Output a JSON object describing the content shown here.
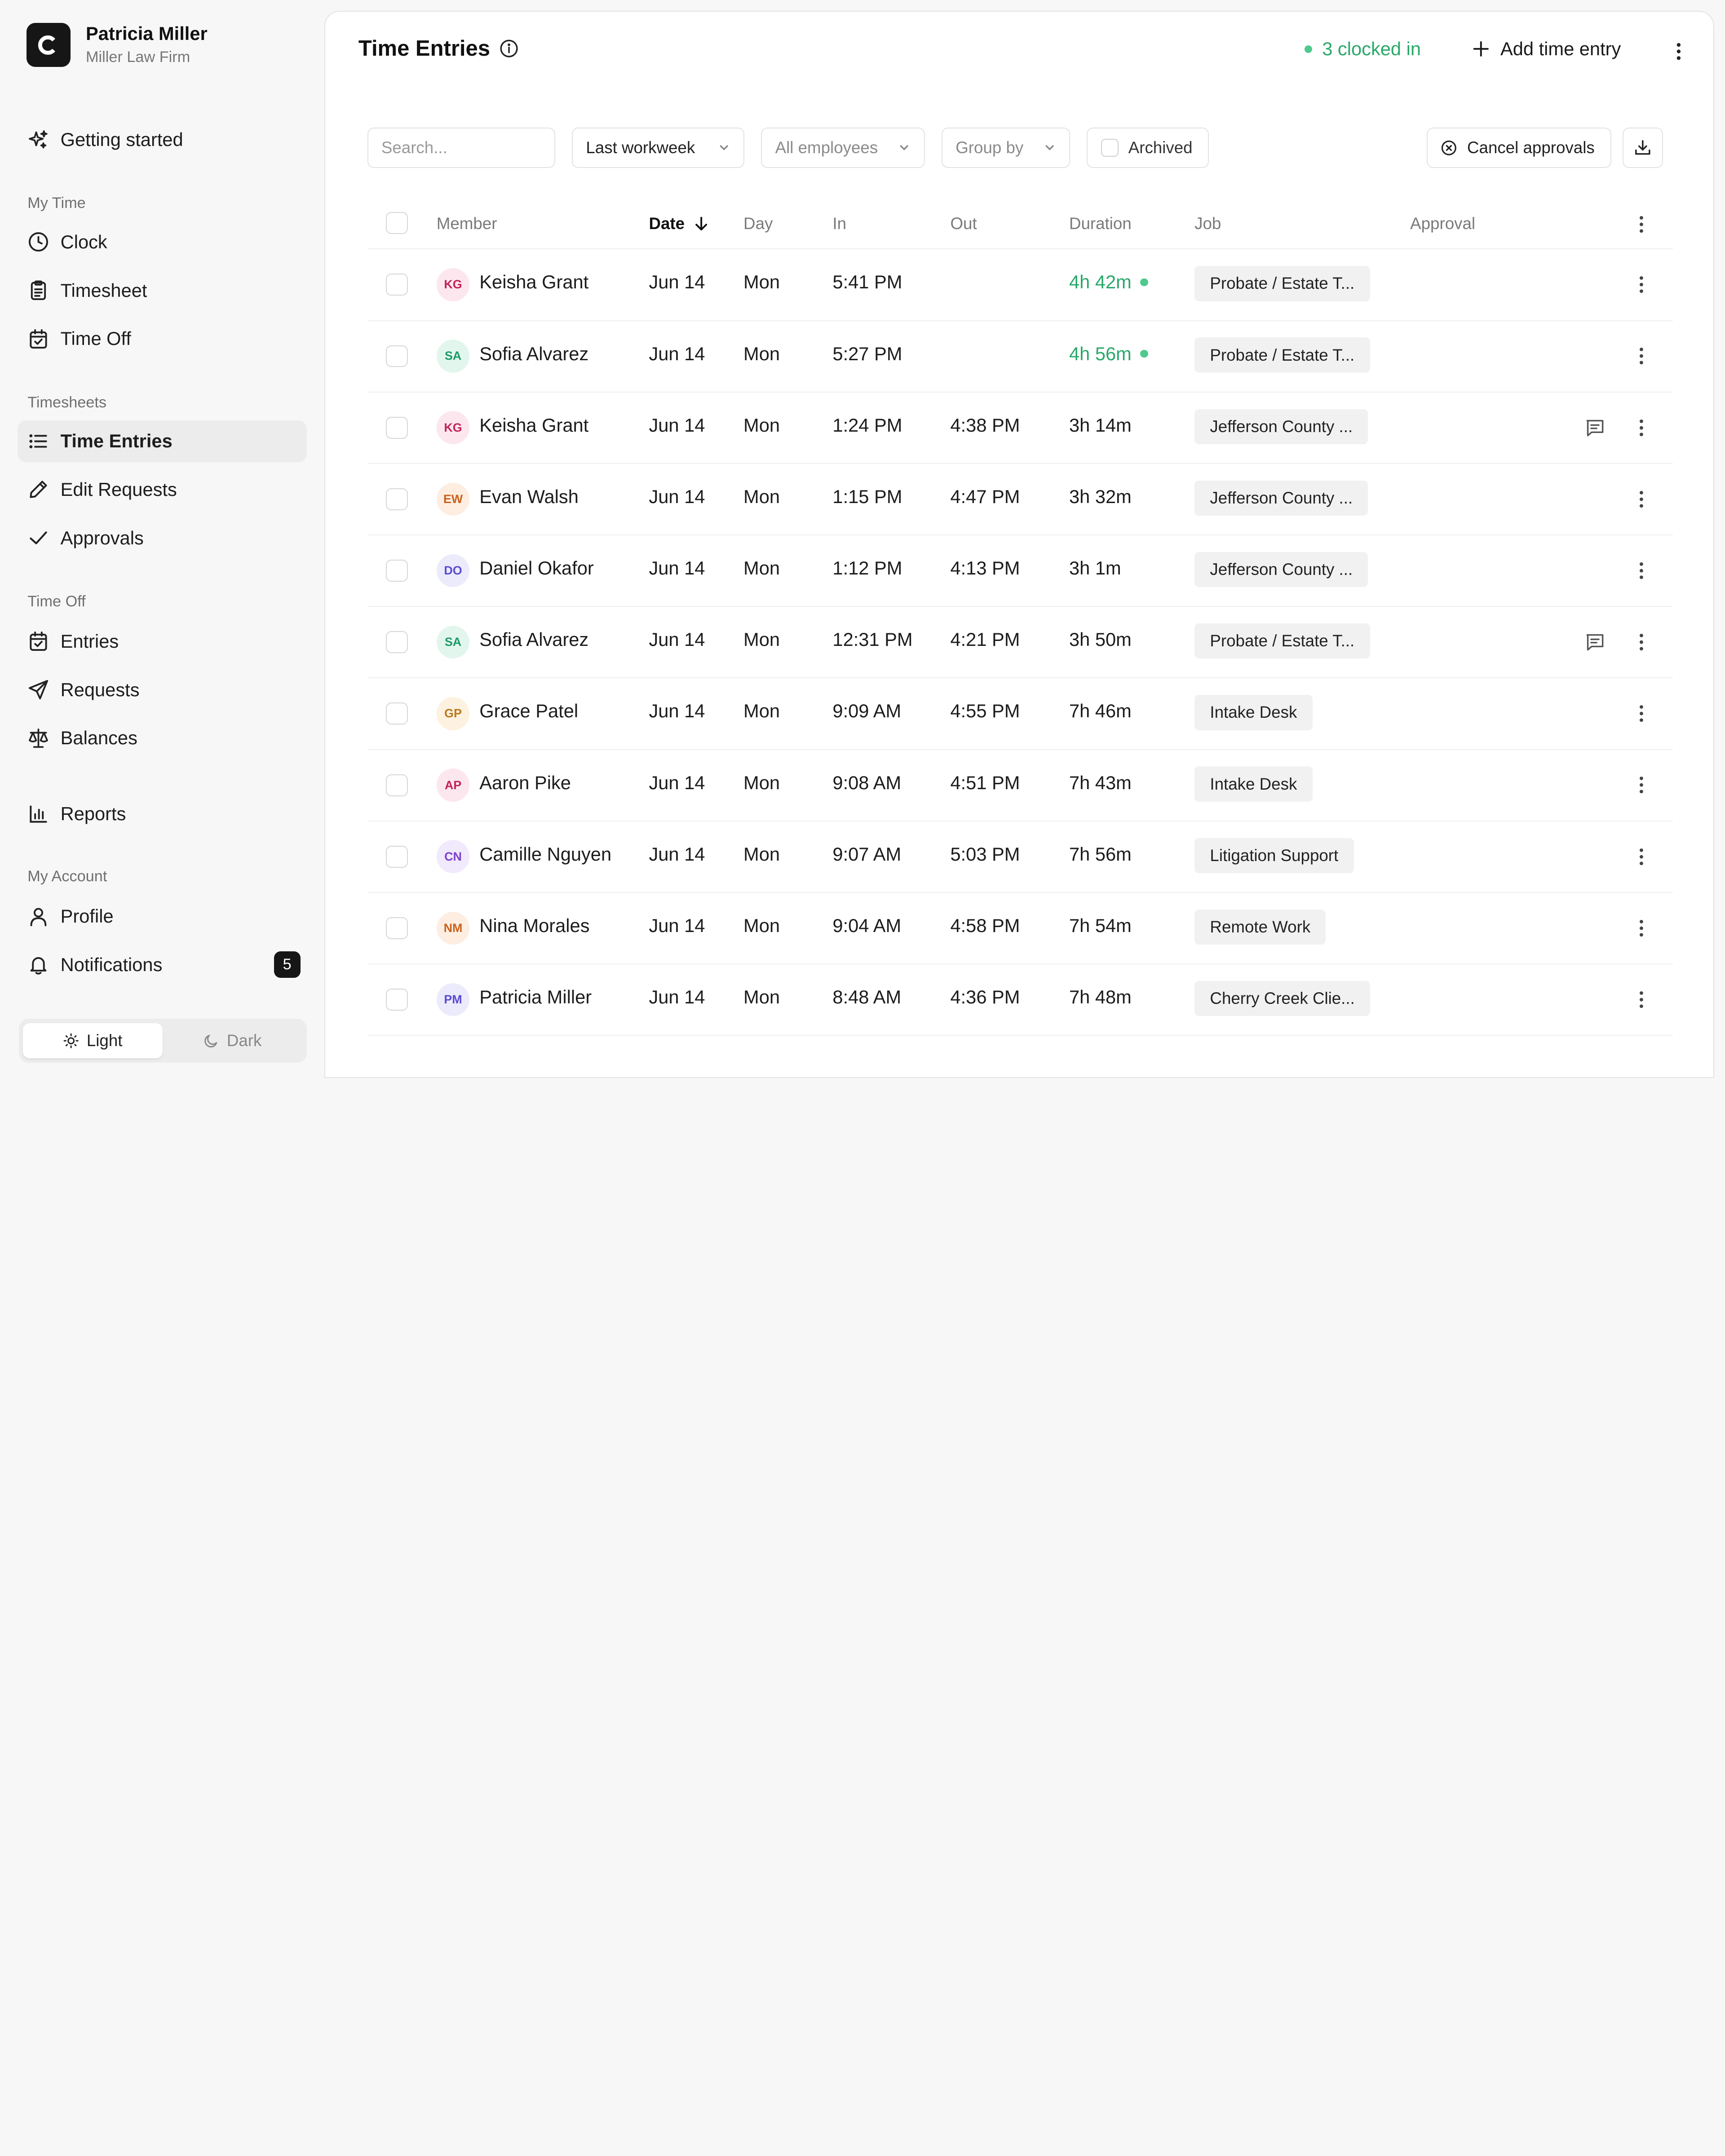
{
  "user": {
    "name": "Patricia Miller",
    "company": "Miller Law Firm",
    "logo_letter": "C"
  },
  "nav": {
    "getting_started": "Getting started",
    "my_time_section": "My Time",
    "clock": "Clock",
    "timesheet": "Timesheet",
    "time_off": "Time Off",
    "timesheets_section": "Timesheets",
    "time_entries": "Time Entries",
    "edit_requests": "Edit Requests",
    "approvals": "Approvals",
    "time_off_section": "Time Off",
    "entries": "Entries",
    "requests": "Requests",
    "balances": "Balances",
    "reports": "Reports",
    "my_account_section": "My Account",
    "profile": "Profile",
    "notifications": "Notifications",
    "notifications_count": "5",
    "active": "time_entries"
  },
  "theme": {
    "light": "Light",
    "dark": "Dark",
    "selected": "light"
  },
  "header": {
    "title": "Time Entries",
    "clocked_in": "3 clocked in",
    "add_entry": "Add time entry"
  },
  "toolbar": {
    "search_placeholder": "Search...",
    "period": "Last workweek",
    "employees": "All employees",
    "group_by": "Group by",
    "archived": "Archived",
    "cancel_approvals": "Cancel approvals"
  },
  "table": {
    "columns": [
      "Member",
      "Date",
      "Day",
      "In",
      "Out",
      "Duration",
      "Job",
      "Approval"
    ],
    "sorted_column": "Date",
    "sort_direction": "descending",
    "rows": [
      {
        "initials": "KG",
        "name": "Keisha Grant",
        "date": "Jun 14",
        "day": "Mon",
        "in": "5:41 PM",
        "out": "",
        "duration": "4h 42m",
        "running": true,
        "job": "Probate / Estate T...",
        "comment": false,
        "avatar_color": "#c0245a",
        "avatar_bg": "#fde7ee"
      },
      {
        "initials": "SA",
        "name": "Sofia Alvarez",
        "date": "Jun 14",
        "day": "Mon",
        "in": "5:27 PM",
        "out": "",
        "duration": "4h 56m",
        "running": true,
        "job": "Probate / Estate T...",
        "comment": false,
        "avatar_color": "#1c9a6a",
        "avatar_bg": "#e3f6ee"
      },
      {
        "initials": "KG",
        "name": "Keisha Grant",
        "date": "Jun 14",
        "day": "Mon",
        "in": "1:24 PM",
        "out": "4:38 PM",
        "duration": "3h 14m",
        "running": false,
        "job": "Jefferson County ...",
        "comment": true,
        "avatar_color": "#c0245a",
        "avatar_bg": "#fde7ee"
      },
      {
        "initials": "EW",
        "name": "Evan Walsh",
        "date": "Jun 14",
        "day": "Mon",
        "in": "1:15 PM",
        "out": "4:47 PM",
        "duration": "3h 32m",
        "running": false,
        "job": "Jefferson County ...",
        "comment": false,
        "avatar_color": "#c8621e",
        "avatar_bg": "#fdeee1"
      },
      {
        "initials": "DO",
        "name": "Daniel Okafor",
        "date": "Jun 14",
        "day": "Mon",
        "in": "1:12 PM",
        "out": "4:13 PM",
        "duration": "3h 1m",
        "running": false,
        "job": "Jefferson County ...",
        "comment": false,
        "avatar_color": "#5b4bd0",
        "avatar_bg": "#ecebfb"
      },
      {
        "initials": "SA",
        "name": "Sofia Alvarez",
        "date": "Jun 14",
        "day": "Mon",
        "in": "12:31 PM",
        "out": "4:21 PM",
        "duration": "3h 50m",
        "running": false,
        "job": "Probate / Estate T...",
        "comment": true,
        "avatar_color": "#1c9a6a",
        "avatar_bg": "#e3f6ee"
      },
      {
        "initials": "GP",
        "name": "Grace Patel",
        "date": "Jun 14",
        "day": "Mon",
        "in": "9:09 AM",
        "out": "4:55 PM",
        "duration": "7h 46m",
        "running": false,
        "job": "Intake Desk",
        "comment": false,
        "avatar_color": "#b7791f",
        "avatar_bg": "#fdf1df"
      },
      {
        "initials": "AP",
        "name": "Aaron Pike",
        "date": "Jun 14",
        "day": "Mon",
        "in": "9:08 AM",
        "out": "4:51 PM",
        "duration": "7h 43m",
        "running": false,
        "job": "Intake Desk",
        "comment": false,
        "avatar_color": "#c0245a",
        "avatar_bg": "#fde7ee"
      },
      {
        "initials": "CN",
        "name": "Camille Nguyen",
        "date": "Jun 14",
        "day": "Mon",
        "in": "9:07 AM",
        "out": "5:03 PM",
        "duration": "7h 56m",
        "running": false,
        "job": "Litigation Support",
        "comment": false,
        "avatar_color": "#7b3fcf",
        "avatar_bg": "#f1e9fc"
      },
      {
        "initials": "NM",
        "name": "Nina Morales",
        "date": "Jun 14",
        "day": "Mon",
        "in": "9:04 AM",
        "out": "4:58 PM",
        "duration": "7h 54m",
        "running": false,
        "job": "Remote Work",
        "comment": false,
        "avatar_color": "#c8621e",
        "avatar_bg": "#fdeee1"
      },
      {
        "initials": "PM",
        "name": "Patricia Miller",
        "date": "Jun 14",
        "day": "Mon",
        "in": "8:48 AM",
        "out": "4:36 PM",
        "duration": "7h 48m",
        "running": false,
        "job": "Cherry Creek Clie...",
        "comment": false,
        "avatar_color": "#5b4bd0",
        "avatar_bg": "#ecebfb"
      }
    ]
  },
  "colors": {
    "accent_green": "#2aa86a",
    "dark": "#161616"
  }
}
